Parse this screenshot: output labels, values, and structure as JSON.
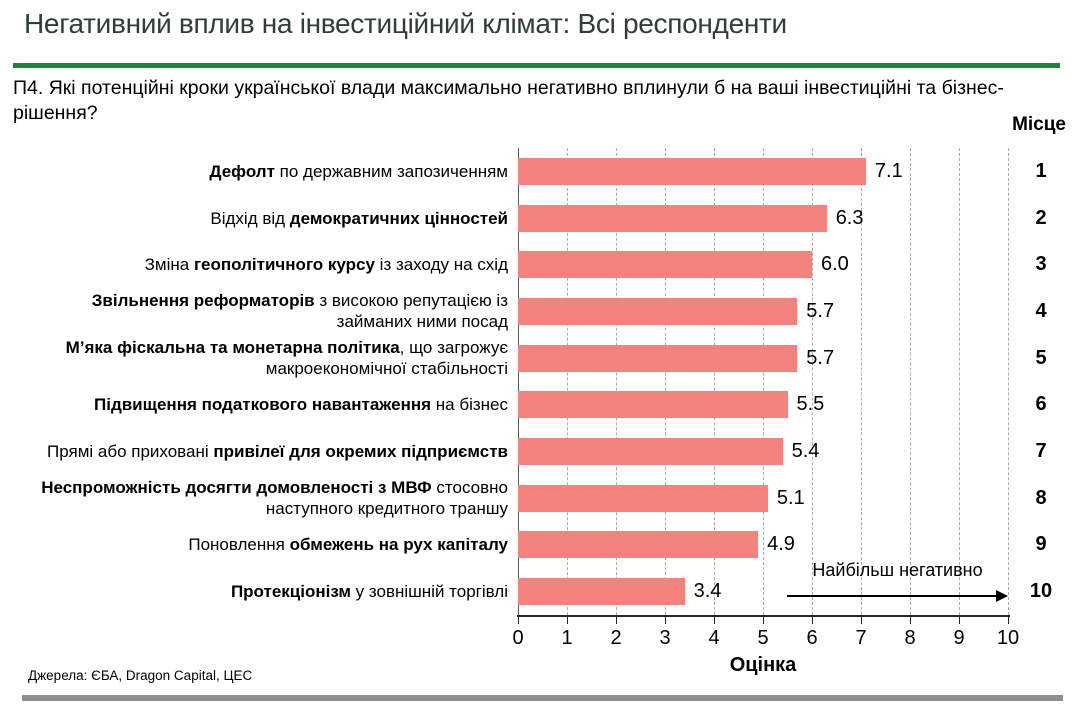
{
  "page": {
    "title": "Негативний вплив на інвестиційний клімат: Всі респонденти"
  },
  "question": {
    "text": "П4. Які потенційні кроки української влади максимально негативно вплинули б на ваші інвестиційні та бізнес-рішення?"
  },
  "rank_column": {
    "header": "Місце"
  },
  "chart_data": {
    "type": "bar",
    "orientation": "horizontal",
    "title": "",
    "xlabel": "Оцінка",
    "xlim": [
      0,
      10
    ],
    "xticks": [
      0,
      1,
      2,
      3,
      4,
      5,
      6,
      7,
      8,
      9,
      10
    ],
    "grid": "vertical-dashed",
    "legend": "none",
    "bar_color": "#F5837D",
    "categories": [
      "Дефолт по державним запозиченням",
      "Відхід від демократичних цінностей",
      "Зміна геополітичного курсу із заходу на схід",
      "Звільнення реформаторів з високою репутацією із займаних ними посад",
      "М’яка фіскальна та монетарна політика, що загрожує макроекономічної стабільності",
      "Підвищення податкового навантаження на бізнес",
      "Прямі або приховані привілеї для окремих підприємств",
      "Неспроможність досягти домовленості з МВФ стосовно наступного кредитного траншу",
      "Поновлення обмежень на рух капіталу",
      "Протекціонізм у зовнішній торгівлі"
    ],
    "categories_rich": [
      [
        {
          "text": "Дефолт",
          "bold": true
        },
        {
          "text": " по державним запозиченням",
          "bold": false
        }
      ],
      [
        {
          "text": "Відхід від ",
          "bold": false
        },
        {
          "text": "демократичних цінностей",
          "bold": true
        }
      ],
      [
        {
          "text": "Зміна ",
          "bold": false
        },
        {
          "text": "геополітичного курсу",
          "bold": true
        },
        {
          "text": " із заходу на схід",
          "bold": false
        }
      ],
      [
        {
          "text": "Звільнення реформаторів",
          "bold": true
        },
        {
          "text": " з високою репутацією із займаних ними посад",
          "bold": false
        }
      ],
      [
        {
          "text": "М’яка фіскальна та монетарна політика",
          "bold": true
        },
        {
          "text": ", що загрожує макроекономічної стабільності",
          "bold": false
        }
      ],
      [
        {
          "text": "Підвищення податкового навантаження",
          "bold": true
        },
        {
          "text": " на бізнес",
          "bold": false
        }
      ],
      [
        {
          "text": "Прямі або приховані ",
          "bold": false
        },
        {
          "text": "привілеї для окремих підприємств",
          "bold": true
        }
      ],
      [
        {
          "text": "Неспроможність досягти домовленості з МВФ",
          "bold": true
        },
        {
          "text": " стосовно наступного кредитного траншу",
          "bold": false
        }
      ],
      [
        {
          "text": "Поновлення ",
          "bold": false
        },
        {
          "text": "обмежень на рух капіталу",
          "bold": true
        }
      ],
      [
        {
          "text": "Протекціонізм",
          "bold": true
        },
        {
          "text": " у зовнішній торгівлі",
          "bold": false
        }
      ]
    ],
    "values": [
      7.1,
      6.3,
      6.0,
      5.7,
      5.7,
      5.5,
      5.4,
      5.1,
      4.9,
      3.4
    ],
    "value_labels": [
      "7.1",
      "6.3",
      "6.0",
      "5.7",
      "5.7",
      "5.5",
      "5.4",
      "5.1",
      "4.9",
      "3.4"
    ],
    "ranks": [
      1,
      2,
      3,
      4,
      5,
      6,
      7,
      8,
      9,
      10
    ],
    "annotation": {
      "text": "Найбільш негативно",
      "arrow": "right",
      "arrow_from_x": 5.5,
      "arrow_to_x": 10
    }
  },
  "footer": {
    "sources": "Джерела: ЄБА, Dragon Capital, ЦЕС"
  },
  "colors": {
    "title_text": "#303E36",
    "accent_green": "#17873B",
    "bar": "#F5837D",
    "gridline": "#ABABAB",
    "axis": "#262626",
    "footer_bar": "#8F8F8F"
  }
}
